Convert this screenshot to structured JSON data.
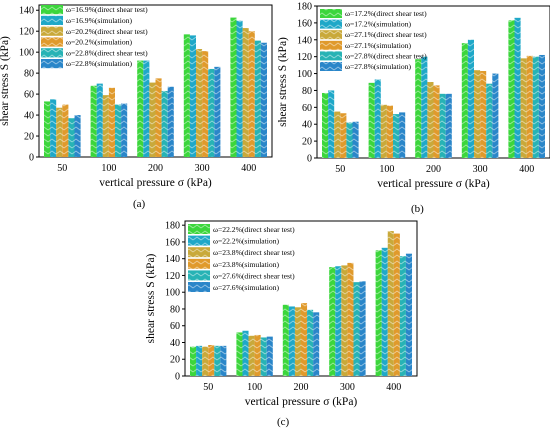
{
  "chart_data": [
    {
      "type": "bar",
      "panel": "(a)",
      "xlabel": "vertical pressure σ (kPa)",
      "ylabel": "shear stress S (kPa)",
      "categories": [
        "50",
        "100",
        "200",
        "300",
        "400"
      ],
      "ylim": [
        0,
        145
      ],
      "yticks": [
        0,
        20,
        40,
        60,
        80,
        100,
        120,
        140
      ],
      "legend_position": "top-left",
      "series": [
        {
          "name": "ω=16.9%(direct shear test)",
          "color": "#3cd63c",
          "values": [
            53,
            68,
            92,
            117,
            133
          ]
        },
        {
          "name": "ω=16.9%(simulation)",
          "color": "#1fa8c8",
          "values": [
            55,
            70,
            92,
            116,
            130
          ]
        },
        {
          "name": "ω=20.2%(direct shear test)",
          "color": "#c9a93a",
          "values": [
            47,
            59,
            71,
            103,
            123
          ]
        },
        {
          "name": "ω=20.2%(simulation)",
          "color": "#e09a2c",
          "values": [
            50,
            66,
            75,
            101,
            120
          ]
        },
        {
          "name": "ω=22.8%(direct shear test)",
          "color": "#27b3b5",
          "values": [
            37,
            50,
            63,
            84,
            111
          ]
        },
        {
          "name": "ω=22.8%(simulation)",
          "color": "#2a86c9",
          "values": [
            40,
            51,
            67,
            86,
            109
          ]
        }
      ]
    },
    {
      "type": "bar",
      "panel": "(b)",
      "xlabel": "vertical pressure σ (kPa)",
      "ylabel": "shear stress S (kPa)",
      "categories": [
        "50",
        "100",
        "200",
        "300",
        "400"
      ],
      "ylim": [
        0,
        180
      ],
      "yticks": [
        0,
        20,
        40,
        60,
        80,
        100,
        120,
        140,
        160,
        180
      ],
      "legend_position": "top-left",
      "series": [
        {
          "name": "ω=17.2%(direct shear test)",
          "color": "#3cd63c",
          "values": [
            77,
            89,
            117,
            136,
            163
          ]
        },
        {
          "name": "ω=17.2%(simulation)",
          "color": "#1fa8c8",
          "values": [
            80,
            93,
            120,
            140,
            166
          ]
        },
        {
          "name": "ω=27.1%(direct shear test)",
          "color": "#c9a93a",
          "values": [
            55,
            63,
            90,
            104,
            118
          ]
        },
        {
          "name": "ω=27.1%(simulation)",
          "color": "#e09a2c",
          "values": [
            53,
            62,
            86,
            103,
            121
          ]
        },
        {
          "name": "ω=27.8%(direct shear test)",
          "color": "#27b3b5",
          "values": [
            42,
            52,
            76,
            88,
            120
          ]
        },
        {
          "name": "ω=27.8%(simulation)",
          "color": "#2a86c9",
          "values": [
            43,
            54,
            76,
            100,
            122
          ]
        }
      ]
    },
    {
      "type": "bar",
      "panel": "(c)",
      "xlabel": "vertical pressure σ (kPa)",
      "ylabel": "shear stress S (kPa)",
      "categories": [
        "50",
        "100",
        "200",
        "300",
        "400"
      ],
      "ylim": [
        0,
        185
      ],
      "yticks": [
        0,
        20,
        40,
        60,
        80,
        100,
        120,
        140,
        160,
        180
      ],
      "legend_position": "top-left",
      "series": [
        {
          "name": "ω=22.2%(direct shear test)",
          "color": "#3cd63c",
          "values": [
            35,
            52,
            85,
            130,
            150
          ]
        },
        {
          "name": "ω=22.2%(simulation)",
          "color": "#1fa8c8",
          "values": [
            36,
            54,
            83,
            131,
            153
          ]
        },
        {
          "name": "ω=23.8%(direct shear test)",
          "color": "#c9a93a",
          "values": [
            35,
            48,
            82,
            132,
            173
          ]
        },
        {
          "name": "ω=23.8%(simulation)",
          "color": "#e09a2c",
          "values": [
            37,
            49,
            87,
            135,
            170
          ]
        },
        {
          "name": "ω=27.6%(direct shear test)",
          "color": "#27b3b5",
          "values": [
            36,
            46,
            79,
            112,
            143
          ]
        },
        {
          "name": "ω=27.6%(simulation)",
          "color": "#2a86c9",
          "values": [
            36,
            47,
            76,
            113,
            146
          ]
        }
      ]
    }
  ]
}
